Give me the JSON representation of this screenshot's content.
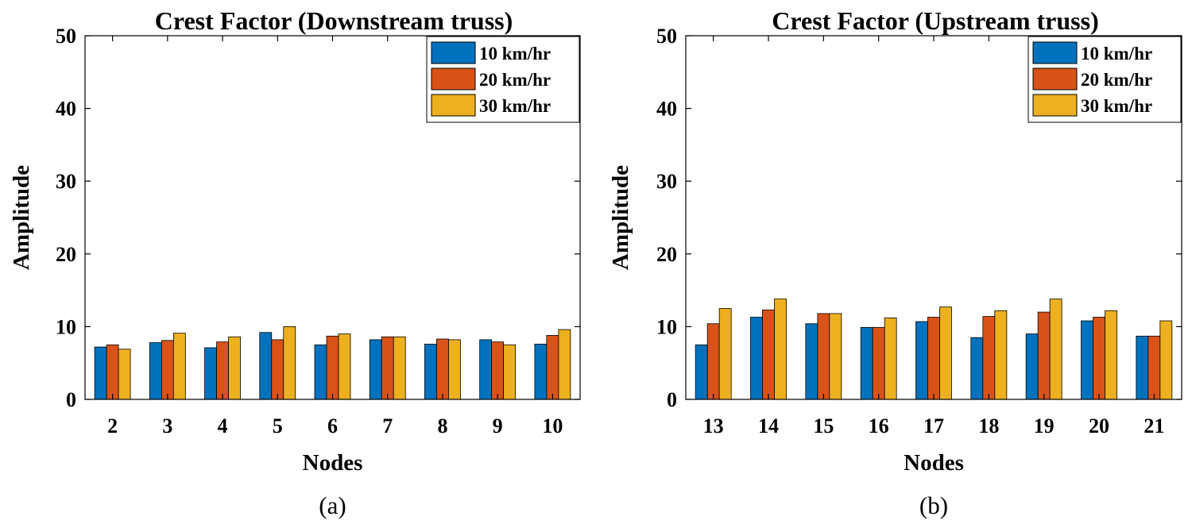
{
  "chart_data": [
    {
      "type": "bar",
      "title": "Crest Factor (Downstream truss)",
      "xlabel": "Nodes",
      "ylabel": "Amplitude",
      "ylim": [
        0,
        50
      ],
      "yticks": [
        0,
        10,
        20,
        30,
        40,
        50
      ],
      "categories": [
        "2",
        "3",
        "4",
        "5",
        "6",
        "7",
        "8",
        "9",
        "10"
      ],
      "series": [
        {
          "name": "10 km/hr",
          "color": "#0072BD",
          "values": [
            7.2,
            7.8,
            7.1,
            9.2,
            7.5,
            8.2,
            7.6,
            8.2,
            7.6
          ]
        },
        {
          "name": "20 km/hr",
          "color": "#D95319",
          "values": [
            7.5,
            8.1,
            7.9,
            8.2,
            8.7,
            8.6,
            8.3,
            7.9,
            8.8
          ]
        },
        {
          "name": "30 km/hr",
          "color": "#EDB120",
          "values": [
            6.9,
            9.1,
            8.6,
            10.0,
            9.0,
            8.6,
            8.2,
            7.5,
            9.6
          ]
        }
      ],
      "legend_position": "top-right",
      "caption": "(a)"
    },
    {
      "type": "bar",
      "title": "Crest Factor (Upstream truss)",
      "xlabel": "Nodes",
      "ylabel": "Amplitude",
      "ylim": [
        0,
        50
      ],
      "yticks": [
        0,
        10,
        20,
        30,
        40,
        50
      ],
      "categories": [
        "13",
        "14",
        "15",
        "16",
        "17",
        "18",
        "19",
        "20",
        "21"
      ],
      "series": [
        {
          "name": "10 km/hr",
          "color": "#0072BD",
          "values": [
            7.5,
            11.3,
            10.4,
            9.9,
            10.7,
            8.5,
            9.0,
            10.8,
            8.7
          ]
        },
        {
          "name": "20 km/hr",
          "color": "#D95319",
          "values": [
            10.4,
            12.3,
            11.8,
            9.9,
            11.3,
            11.4,
            12.0,
            11.3,
            8.7
          ]
        },
        {
          "name": "30 km/hr",
          "color": "#EDB120",
          "values": [
            12.5,
            13.8,
            11.8,
            11.2,
            12.7,
            12.2,
            13.8,
            12.2,
            10.8
          ]
        }
      ],
      "legend_position": "top-right",
      "caption": "(b)"
    }
  ]
}
